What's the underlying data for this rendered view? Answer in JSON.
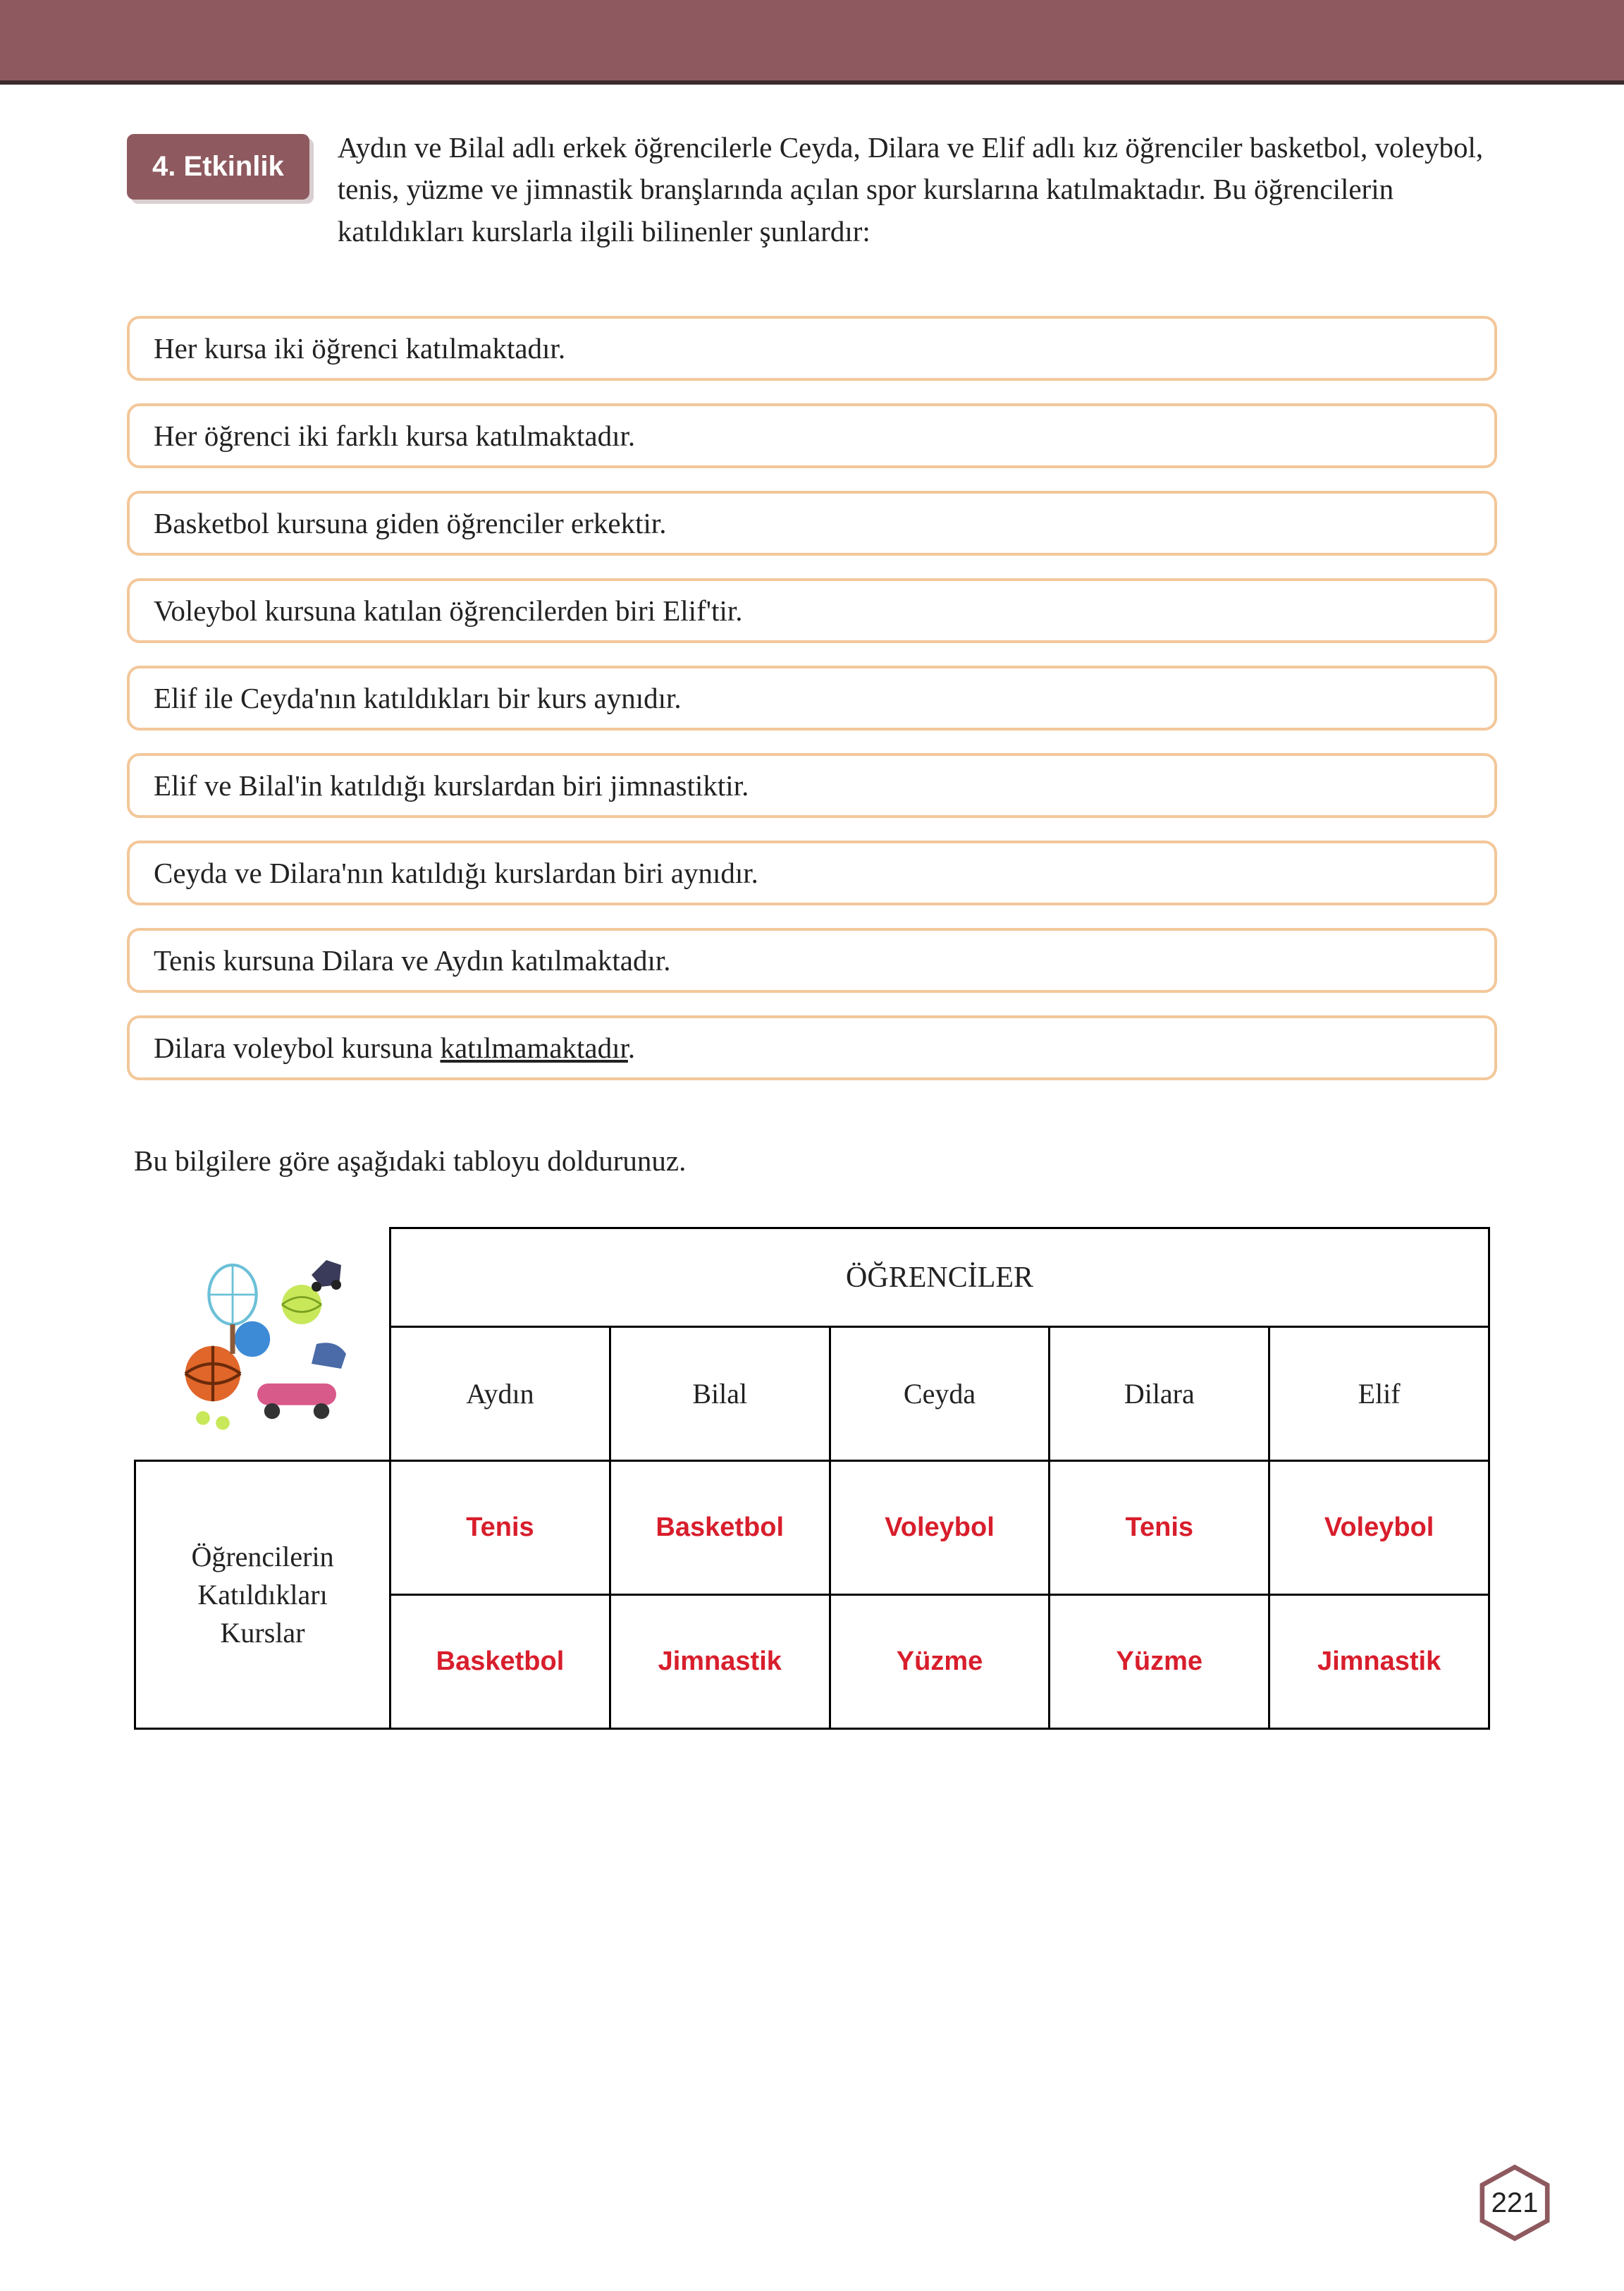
{
  "header": {
    "bar_color": "#8e5a5f",
    "underline_color": "#3a2a2e"
  },
  "badge": {
    "label": "4. Etkinlik",
    "bg_color": "#8e5a5f",
    "text_color": "#ffffff"
  },
  "intro": "Aydın ve Bilal adlı erkek öğrencilerle Ceyda, Dilara ve Elif adlı kız öğrenciler basketbol, voleybol, tenis, yüzme ve jimnastik branşlarında açılan spor kurslarına katılmaktadır. Bu öğrencilerin katıldıkları kurslarla ilgili bilinenler şunlardır:",
  "clues": [
    "Her kursa iki öğrenci katılmaktadır.",
    "Her öğrenci iki farklı kursa katılmaktadır.",
    "Basketbol kursuna giden öğrenciler erkektir.",
    "Voleybol kursuna katılan öğrencilerden biri Elif'tir.",
    "Elif ile Ceyda'nın katıldıkları bir kurs aynıdır.",
    "Elif ve Bilal'in katıldığı kurslardan biri jimnastiktir.",
    "Ceyda ve Dilara'nın katıldığı kurslardan biri aynıdır.",
    "Tenis kursuna Dilara ve Aydın katılmaktadır.",
    "Dilara voleybol kursuna katılmamaktadır."
  ],
  "clue_underlined_word": "katılmamaktadır",
  "instruction": "Bu bilgilere göre aşağıdaki tabloyu doldurunuz.",
  "table": {
    "students_header": "ÖĞRENCİLER",
    "row_label": "Öğrencilerin Katıldıkları Kurslar",
    "columns": [
      "Aydın",
      "Bilal",
      "Ceyda",
      "Dilara",
      "Elif"
    ],
    "rows": [
      [
        "Tenis",
        "Basketbol",
        "Voleybol",
        "Tenis",
        "Voleybol"
      ],
      [
        "Basketbol",
        "Jimnastik",
        "Yüzme",
        "Yüzme",
        "Jimnastik"
      ]
    ],
    "answer_color": "#d81e2c",
    "border_color": "#000000",
    "clue_border_color": "#f3c79a"
  },
  "page_number": "221",
  "page_badge_color": "#8e5a5f"
}
